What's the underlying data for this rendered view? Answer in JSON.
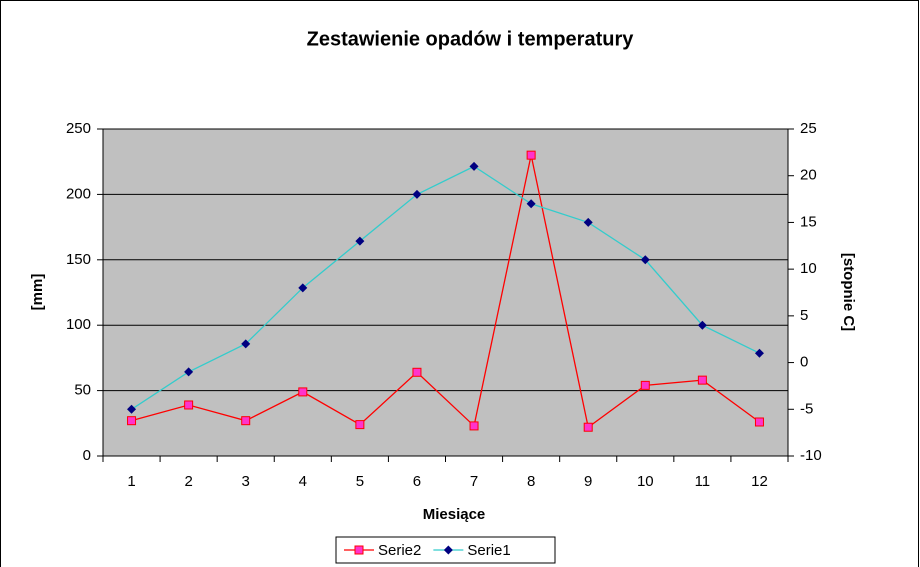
{
  "chart_data": {
    "type": "line",
    "title": "Zestawienie opadów i temperatury",
    "x_label": "Miesiące",
    "y_label": "[mm]",
    "y2_label": "[stopnie C]",
    "categories": [
      "1",
      "2",
      "3",
      "4",
      "5",
      "6",
      "7",
      "8",
      "9",
      "10",
      "11",
      "12"
    ],
    "series": [
      {
        "name": "Serie2",
        "color": "#ff0000",
        "marker_color": "#ff33cc",
        "marker": "square",
        "values": [
          27,
          39,
          27,
          49,
          24,
          64,
          23,
          230,
          22,
          54,
          58,
          26
        ]
      },
      {
        "name": "Serie1",
        "color": "#33cccc",
        "marker_color": "#000080",
        "marker": "diamond",
        "axis": "y2",
        "values": [
          -5,
          -1,
          2,
          8,
          13,
          18,
          21,
          17,
          15,
          11,
          4,
          1
        ]
      }
    ],
    "ylim": [
      0,
      250
    ],
    "yticks": [
      0,
      50,
      100,
      150,
      200,
      250
    ],
    "y2lim": [
      -10,
      25
    ],
    "y2ticks": [
      -10,
      -5,
      0,
      5,
      10,
      15,
      20,
      25
    ],
    "grid": true,
    "plot_background": "#c0c0c0",
    "legend": "bottom"
  }
}
